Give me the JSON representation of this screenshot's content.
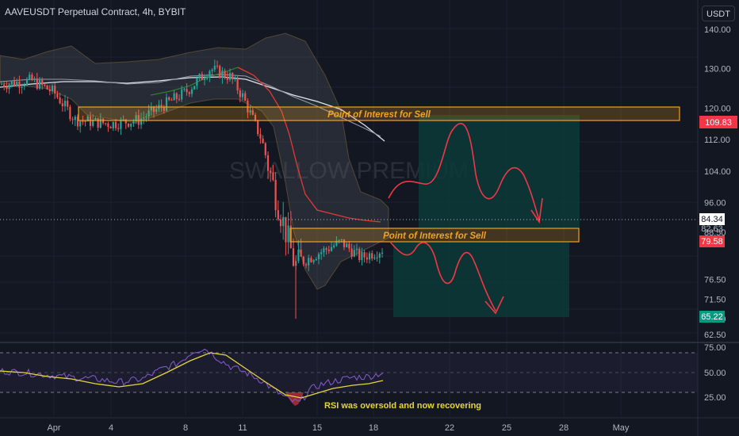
{
  "header": {
    "symbol_title": "AAVEUSDT Perpetual Contract, 4h, BYBIT",
    "currency_button": "USDT"
  },
  "watermark": "SWALLOW PREMIUM",
  "annotations": {
    "upper_zone": "Point of Interest for Sell",
    "lower_zone": "Point of Interest for Sell",
    "rsi_note": "RSI was oversold and now recovering"
  },
  "price_axis": {
    "ticks": [
      "140.00",
      "130.00",
      "120.00",
      "112.00",
      "104.00",
      "96.00",
      "88.50",
      "76.50",
      "71.50",
      "66.50",
      "62.50"
    ],
    "tick_values": [
      140,
      130,
      120,
      112,
      104,
      96,
      88.5,
      76.5,
      71.5,
      66.5,
      62.5
    ]
  },
  "price_labels": {
    "current": "84.34",
    "current_partial": "82.63",
    "stop_level": "109.83",
    "entry_level": "79.58",
    "target_level": "65.22"
  },
  "rsi_axis": {
    "ticks": [
      "75.00",
      "50.00",
      "25.00"
    ]
  },
  "time_axis": {
    "ticks": [
      "Apr",
      "4",
      "8",
      "11",
      "15",
      "18",
      "22",
      "25",
      "28",
      "May"
    ]
  },
  "colors": {
    "background": "#131722",
    "up": "#26a69a",
    "down": "#ef5350",
    "zone_border": "#f2a21b",
    "zone_text": "#f2a21b",
    "target_box": "#0c3a37",
    "stop_label": "#f23645",
    "target_label": "#089981",
    "rsi_line": "#7e57c2",
    "rsi_ma": "#e6d63a",
    "path": "#f23645"
  },
  "chart_data": {
    "type": "candlestick",
    "timeframe": "4h",
    "price_range": [
      62,
      143
    ],
    "rsi_range": [
      10,
      85
    ],
    "approx_close_path": [
      {
        "date": "Mar 29",
        "close": 126
      },
      {
        "date": "Mar 31",
        "close": 127
      },
      {
        "date": "Apr 1",
        "close": 124
      },
      {
        "date": "Apr 2",
        "close": 117
      },
      {
        "date": "Apr 4",
        "close": 116
      },
      {
        "date": "Apr 6",
        "close": 117
      },
      {
        "date": "Apr 8",
        "close": 124
      },
      {
        "date": "Apr 9",
        "close": 130
      },
      {
        "date": "Apr 10",
        "close": 128
      },
      {
        "date": "Apr 11",
        "close": 123
      },
      {
        "date": "Apr 12",
        "close": 112
      },
      {
        "date": "Apr 13",
        "close": 100
      },
      {
        "date": "Apr 14",
        "close": 80
      },
      {
        "date": "Apr 15",
        "close": 83
      },
      {
        "date": "Apr 16",
        "close": 86
      },
      {
        "date": "Apr 17",
        "close": 82
      },
      {
        "date": "Apr 18",
        "close": 84.34
      }
    ],
    "zones": [
      {
        "label": "Point of Interest for Sell",
        "low": 109.83,
        "high": 112.5
      },
      {
        "label": "Point of Interest for Sell",
        "low": 79.58,
        "high": 81.8
      }
    ],
    "trade": {
      "entry": 79.58,
      "stop": 109.83,
      "target": 65.22
    },
    "rsi_levels": [
      75,
      50,
      25
    ]
  }
}
